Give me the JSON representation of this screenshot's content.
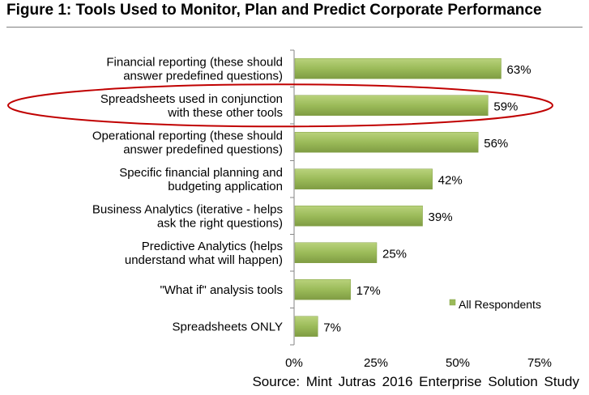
{
  "figure_title": "Figure 1: Tools Used to Monitor, Plan and Predict Corporate Performance",
  "source": "Source: Mint Jutras 2016 Enterprise Solution Study",
  "chart_data": {
    "type": "bar",
    "orientation": "horizontal",
    "categories": [
      [
        "Financial reporting (these should",
        "answer predefined questions)"
      ],
      [
        "Spreadsheets used in conjunction",
        "with these other tools"
      ],
      [
        "Operational reporting (these should",
        "answer predefined questions)"
      ],
      [
        "Specific financial planning and",
        "budgeting application"
      ],
      [
        "Business Analytics (iterative - helps",
        "ask the right questions)"
      ],
      [
        "Predictive Analytics (helps",
        "understand what will happen)"
      ],
      [
        "\"What if\" analysis tools"
      ],
      [
        "Spreadsheets ONLY"
      ]
    ],
    "series": [
      {
        "name": "All Respondents",
        "values": [
          63,
          59,
          56,
          42,
          39,
          25,
          17,
          7
        ],
        "color": "#9bbb59"
      }
    ],
    "data_labels": [
      "63%",
      "59%",
      "56%",
      "42%",
      "39%",
      "25%",
      "17%",
      "7%"
    ],
    "x_ticks": [
      "0%",
      "25%",
      "50%",
      "75%"
    ],
    "xlim": [
      0,
      75
    ],
    "legend_position": "bottom-right",
    "grid": false,
    "highlight": {
      "category_index": 1,
      "shape": "ellipse",
      "color": "#c00000"
    }
  }
}
